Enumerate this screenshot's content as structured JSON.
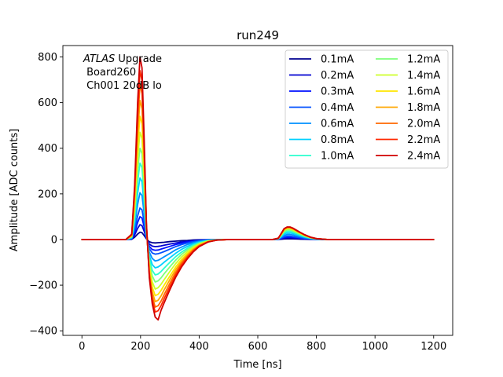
{
  "chart_data": {
    "type": "line",
    "title": "run249",
    "xlabel": "Time [ns]",
    "ylabel": "Amplitude [ADC counts]",
    "xlim": [
      -65,
      1265
    ],
    "ylim": [
      -420,
      850
    ],
    "xticks": [
      0,
      200,
      400,
      600,
      800,
      1000,
      1200
    ],
    "xtick_labels": [
      "0",
      "200",
      "400",
      "600",
      "800",
      "1000",
      "1200"
    ],
    "yticks": [
      -400,
      -200,
      0,
      200,
      400,
      600,
      800
    ],
    "ytick_labels": [
      "−400",
      "−200",
      "0",
      "200",
      "400",
      "600",
      "800"
    ],
    "grid": false,
    "legend_position": "top-right",
    "annotation": {
      "italic": "ATLAS",
      "line1_rest": " Upgrade",
      "line2": " Board260",
      "line3": " Ch001 20dB lo"
    },
    "x": [
      0,
      150,
      170,
      180,
      190,
      198,
      205,
      212,
      220,
      230,
      240,
      250,
      260,
      270,
      280,
      300,
      320,
      340,
      360,
      380,
      400,
      430,
      460,
      500,
      550,
      600,
      650,
      670,
      680,
      690,
      700,
      710,
      720,
      740,
      760,
      780,
      800,
      840,
      900,
      1000,
      1100,
      1200
    ],
    "series": [
      {
        "name": "0.1mA",
        "color": "#00008f",
        "peak": 32,
        "values": [
          0,
          0,
          1,
          10,
          24,
          32,
          30,
          18,
          3,
          -10,
          -14,
          -15,
          -14,
          -13,
          -12,
          -9,
          -7,
          -5,
          -4,
          -2,
          -1,
          -0.5,
          0,
          0,
          0,
          0,
          0,
          0.3,
          1.3,
          2.5,
          3,
          3,
          2.8,
          2,
          1.2,
          0.5,
          0.2,
          0,
          0,
          0,
          0,
          0
        ]
      },
      {
        "name": "0.2mA",
        "color": "#0000d0",
        "peak": 65,
        "values": [
          0,
          0,
          2,
          20,
          49,
          65,
          61,
          37,
          6,
          -20,
          -29,
          -31,
          -30,
          -28,
          -25,
          -20,
          -15,
          -11,
          -8,
          -5,
          -3,
          -1,
          -0.3,
          0,
          0,
          0,
          0,
          0.8,
          3.5,
          6.5,
          8,
          8,
          7,
          5,
          3,
          1.5,
          0.5,
          0,
          0,
          0,
          0,
          0
        ]
      },
      {
        "name": "0.3mA",
        "color": "#0010ff",
        "peak": 100,
        "values": [
          0,
          0,
          3,
          30,
          75,
          100,
          94,
          57,
          9,
          -30,
          -44,
          -47,
          -46,
          -42,
          -38,
          -30,
          -22,
          -16,
          -11,
          -7,
          -4,
          -1.5,
          -0.4,
          0,
          0,
          0,
          0,
          1,
          5,
          9,
          11,
          11,
          10,
          7,
          4,
          2,
          0.7,
          0,
          0,
          0,
          0,
          0
        ]
      },
      {
        "name": "0.4mA",
        "color": "#0050ff",
        "peak": 138,
        "values": [
          0,
          0,
          4,
          41,
          103,
          138,
          130,
          79,
          12,
          -40,
          -59,
          -64,
          -62,
          -58,
          -53,
          -42,
          -31,
          -22,
          -15,
          -9,
          -5,
          -2,
          -0.5,
          0,
          0,
          0,
          0,
          1.5,
          7,
          12,
          15,
          15,
          13,
          9,
          5.5,
          2.5,
          1,
          0,
          0,
          0,
          0,
          0
        ]
      },
      {
        "name": "0.6mA",
        "color": "#0090ff",
        "peak": 205,
        "values": [
          0,
          0,
          6,
          61,
          153,
          205,
          193,
          117,
          18,
          -55,
          -83,
          -94,
          -91,
          -84,
          -76,
          -61,
          -45,
          -33,
          -22,
          -14,
          -8,
          -3,
          -0.8,
          0,
          0,
          0,
          0,
          2.2,
          10,
          18,
          22,
          22,
          20,
          14,
          8,
          4,
          1.5,
          0,
          0,
          0,
          0,
          0
        ]
      },
      {
        "name": "0.8mA",
        "color": "#00d0ff",
        "peak": 270,
        "values": [
          0,
          0,
          8,
          81,
          202,
          270,
          254,
          154,
          24,
          -70,
          -110,
          -124,
          -120,
          -111,
          -100,
          -80,
          -60,
          -43,
          -30,
          -19,
          -11,
          -4,
          -1,
          0,
          0,
          0,
          0,
          2.8,
          13,
          24,
          29,
          29,
          26,
          18,
          10.5,
          5,
          2,
          0,
          0,
          0,
          0,
          0
        ]
      },
      {
        "name": "1.0mA",
        "color": "#29ffce",
        "peak": 335,
        "values": [
          0,
          0,
          10,
          100,
          251,
          335,
          315,
          191,
          30,
          -85,
          -135,
          -155,
          -151,
          -140,
          -126,
          -100,
          -75,
          -55,
          -38,
          -24,
          -14,
          -5,
          -1.2,
          0,
          0,
          0,
          0,
          3.5,
          16,
          30,
          36,
          36,
          32,
          22,
          13,
          6.5,
          2.5,
          0,
          0,
          0,
          0,
          0
        ]
      },
      {
        "name": "1.2mA",
        "color": "#7dff7a",
        "peak": 400,
        "values": [
          0,
          0,
          12,
          120,
          300,
          400,
          376,
          228,
          36,
          -100,
          -160,
          -186,
          -181,
          -168,
          -151,
          -120,
          -90,
          -65,
          -45,
          -29,
          -17,
          -6,
          -1.5,
          0,
          0,
          0,
          0,
          4,
          19,
          35,
          42,
          42,
          37,
          26,
          15,
          7.5,
          3,
          0,
          0,
          0,
          0,
          0
        ]
      },
      {
        "name": "1.4mA",
        "color": "#ceff29",
        "peak": 470,
        "values": [
          0,
          0,
          14,
          141,
          352,
          470,
          442,
          268,
          42,
          -115,
          -186,
          -217,
          -211,
          -196,
          -177,
          -140,
          -105,
          -76,
          -53,
          -34,
          -20,
          -7,
          -1.8,
          0,
          0,
          0,
          0,
          4.5,
          21,
          40,
          47,
          47,
          42,
          29,
          17,
          8.5,
          3.5,
          0,
          0,
          0,
          0,
          0
        ]
      },
      {
        "name": "1.6mA",
        "color": "#ffe600",
        "peak": 540,
        "values": [
          0,
          0,
          16,
          162,
          405,
          540,
          508,
          308,
          49,
          -128,
          -208,
          -246,
          -240,
          -223,
          -201,
          -160,
          -120,
          -87,
          -61,
          -39,
          -23,
          -8,
          -2,
          0,
          0,
          0,
          0,
          5,
          23,
          43,
          50,
          50,
          45,
          31,
          18.5,
          9,
          3.8,
          0,
          0,
          0,
          0,
          0
        ]
      },
      {
        "name": "1.8mA",
        "color": "#ffa700",
        "peak": 610,
        "values": [
          0,
          0,
          18,
          183,
          457,
          610,
          573,
          348,
          55,
          -140,
          -230,
          -272,
          -266,
          -247,
          -222,
          -176,
          -132,
          -96,
          -67,
          -43,
          -25,
          -9,
          -2.2,
          0,
          0,
          0,
          0,
          5.3,
          24,
          45,
          52,
          52,
          47,
          32.5,
          19.5,
          9.5,
          4,
          0,
          0,
          0,
          0,
          0
        ]
      },
      {
        "name": "2.0mA",
        "color": "#ff6800",
        "peak": 680,
        "values": [
          0,
          0,
          20,
          204,
          510,
          680,
          639,
          388,
          61,
          -150,
          -250,
          -296,
          -290,
          -270,
          -243,
          -192,
          -144,
          -104,
          -73,
          -47,
          -27,
          -10,
          -2.4,
          0,
          0,
          0,
          0,
          5.6,
          25,
          46,
          53,
          53,
          48,
          33,
          20,
          9.8,
          4.1,
          0,
          0,
          0,
          0,
          0
        ]
      },
      {
        "name": "2.2mA",
        "color": "#ff2900",
        "peak": 740,
        "values": [
          0,
          0,
          22,
          222,
          555,
          740,
          696,
          422,
          67,
          -160,
          -266,
          -318,
          -312,
          -290,
          -261,
          -206,
          -155,
          -112,
          -78,
          -50,
          -29,
          -10.5,
          -2.5,
          0,
          0,
          0,
          0,
          5.8,
          26,
          47,
          54,
          54,
          49,
          34,
          20.5,
          10,
          4.2,
          0,
          0,
          0,
          0,
          0
        ]
      },
      {
        "name": "2.4mA",
        "color": "#d00000",
        "peak": 800,
        "values": [
          0,
          0,
          24,
          240,
          600,
          800,
          752,
          456,
          72,
          -168,
          -282,
          -340,
          -352,
          -310,
          -279,
          -220,
          -165,
          -120,
          -84,
          -54,
          -31,
          -11,
          -2.6,
          0,
          0,
          0,
          0,
          6,
          27,
          48,
          55,
          55,
          50,
          35,
          21,
          10.2,
          4.3,
          0,
          0,
          0,
          0,
          0
        ]
      }
    ]
  }
}
